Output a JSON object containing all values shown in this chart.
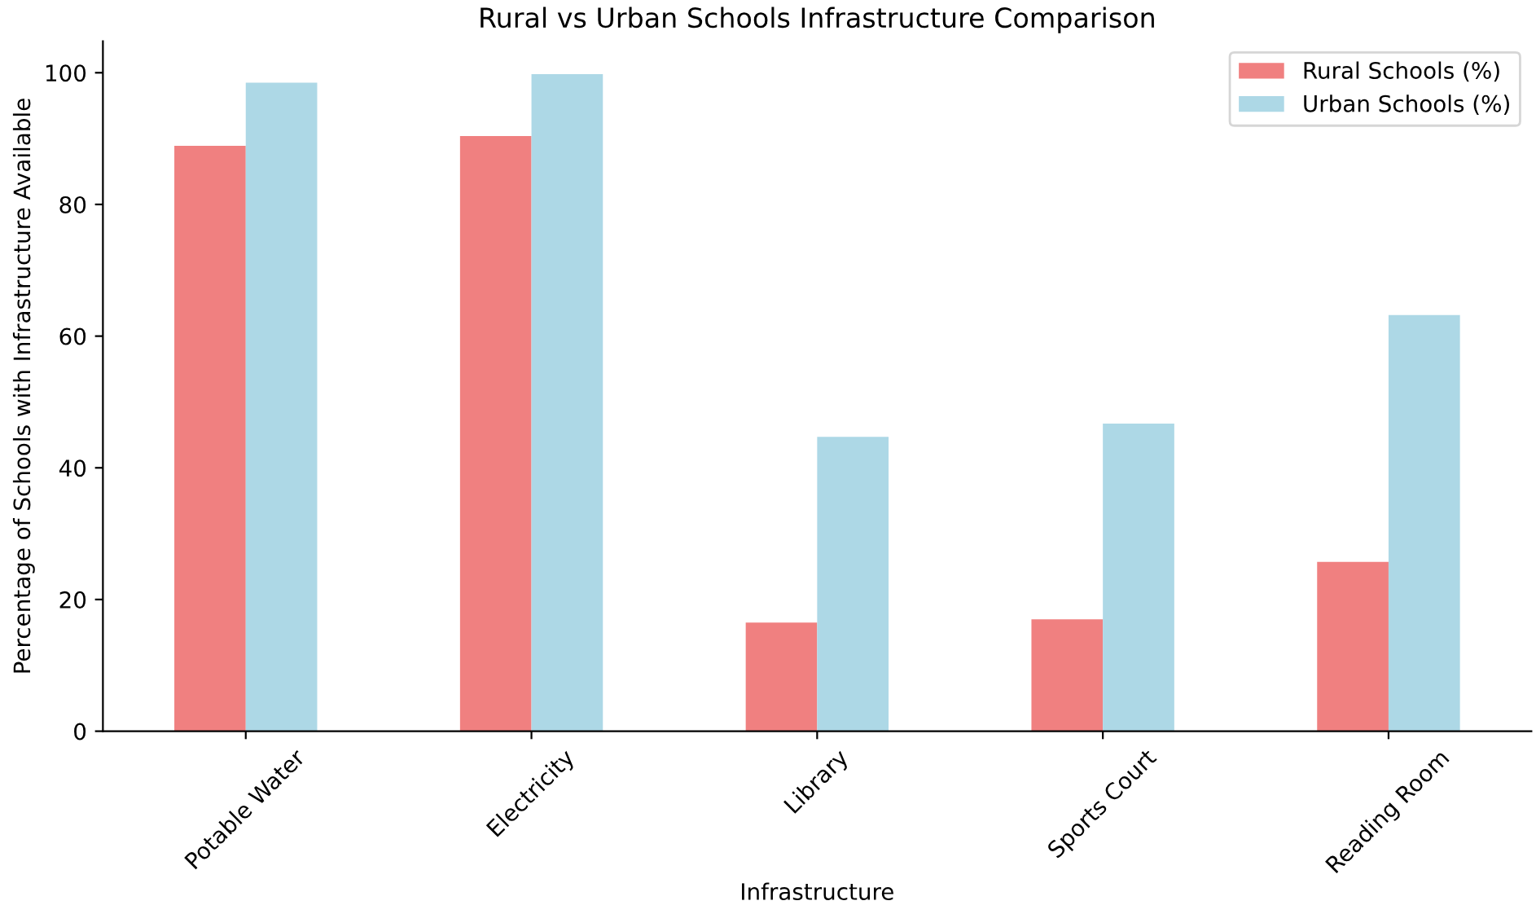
{
  "chart_data": {
    "type": "bar",
    "title": "Rural vs Urban Schools Infrastructure Comparison",
    "xlabel": "Infrastructure",
    "ylabel": "Percentage of Schools with Infrastructure Available",
    "categories": [
      "Potable Water",
      "Electricity",
      "Library",
      "Sports Court",
      "Reading Room"
    ],
    "series": [
      {
        "name": "Rural Schools (%)",
        "color": "#f08080",
        "values": [
          88.9,
          90.4,
          16.5,
          17.0,
          25.7
        ]
      },
      {
        "name": "Urban Schools (%)",
        "color": "#add8e6",
        "values": [
          98.5,
          99.8,
          44.7,
          46.7,
          63.2
        ]
      }
    ],
    "ylim": [
      0,
      104.8
    ],
    "yticks": [
      0,
      20,
      40,
      60,
      80,
      100
    ],
    "grid": false,
    "legend": "top right"
  }
}
